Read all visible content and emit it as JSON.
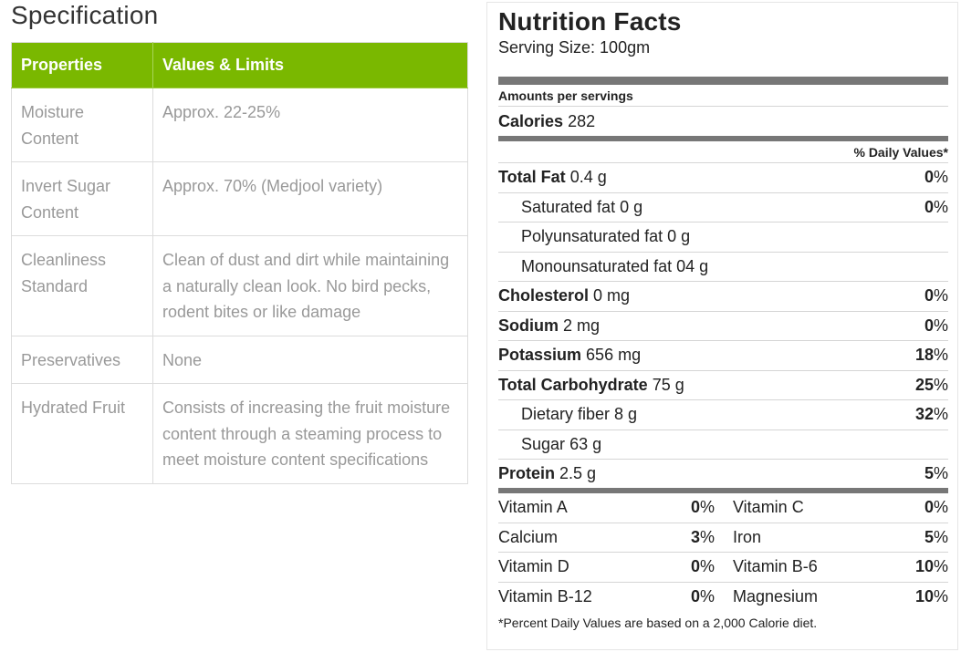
{
  "specification": {
    "title": "Specification",
    "headers": [
      "Properties",
      "Values & Limits"
    ],
    "rows": [
      {
        "property": "Moisture Content",
        "value": "Approx. 22-25%"
      },
      {
        "property": "Invert Sugar Content",
        "value": "Approx. 70% (Medjool variety)"
      },
      {
        "property": "Cleanliness Standard",
        "value": "Clean of dust and dirt while maintaining a naturally clean look. No bird pecks, rodent bites or like damage"
      },
      {
        "property": "Preservatives",
        "value": "None"
      },
      {
        "property": "Hydrated Fruit",
        "value": "Consists of increasing the fruit moisture content through a steaming process to meet moisture content specifications"
      }
    ]
  },
  "nutrition": {
    "title": "Nutrition Facts",
    "serving": "Serving Size: 100gm",
    "amounts_label": "Amounts per servings",
    "calories_label": "Calories",
    "calories_value": "282",
    "dv_header": "% Daily Values*",
    "nutrients": [
      {
        "name": "Total Fat",
        "amount": "0.4 g",
        "pct": "0",
        "bold": true
      },
      {
        "name": "Saturated fat",
        "amount": "0 g",
        "pct": "0",
        "bold": false
      },
      {
        "name": "Polyunsaturated fat",
        "amount": "0 g",
        "pct": "",
        "bold": false
      },
      {
        "name": "Monounsaturated fat",
        "amount": "04 g",
        "pct": "",
        "bold": false
      },
      {
        "name": "Cholesterol",
        "amount": "0 mg",
        "pct": "0",
        "bold": true
      },
      {
        "name": "Sodium",
        "amount": "2 mg",
        "pct": "0",
        "bold": true
      },
      {
        "name": "Potassium",
        "amount": "656 mg",
        "pct": "18",
        "bold": true
      },
      {
        "name": "Total Carbohydrate",
        "amount": "75 g",
        "pct": "25",
        "bold": true
      },
      {
        "name": "Dietary fiber",
        "amount": "8 g",
        "pct": "32",
        "bold": false
      },
      {
        "name": "Sugar",
        "amount": "63 g",
        "pct": "",
        "bold": false
      },
      {
        "name": "Protein",
        "amount": "2.5 g",
        "pct": "5",
        "bold": true
      }
    ],
    "vitamins": [
      [
        {
          "name": "Vitamin A",
          "pct": "0"
        },
        {
          "name": "Vitamin C",
          "pct": "0"
        }
      ],
      [
        {
          "name": "Calcium",
          "pct": "3"
        },
        {
          "name": "Iron",
          "pct": "5"
        }
      ],
      [
        {
          "name": "Vitamin D",
          "pct": "0"
        },
        {
          "name": "Vitamin B-6",
          "pct": "10"
        }
      ],
      [
        {
          "name": "Vitamin B-12",
          "pct": "0"
        },
        {
          "name": "Magnesium",
          "pct": "10"
        }
      ]
    ],
    "percent_sign": "%",
    "footnote": "*Percent Daily Values are based on a 2,000 Calorie diet."
  },
  "colors": {
    "header_green": "#7ab800",
    "rule_gray": "#777777"
  }
}
